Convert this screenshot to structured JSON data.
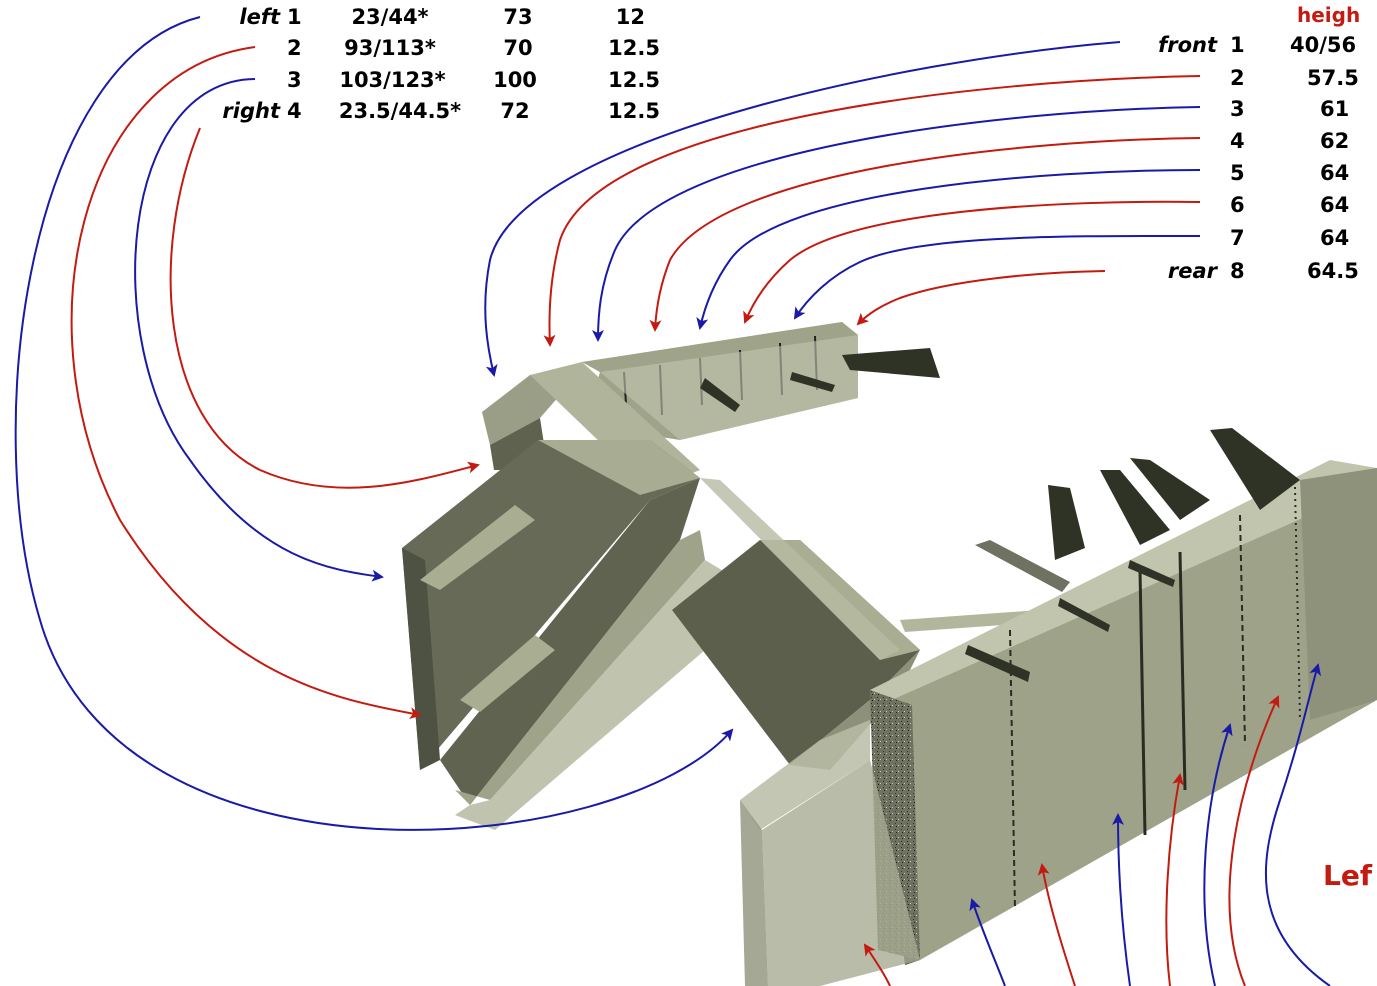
{
  "left_table": {
    "rows": [
      {
        "side": "left",
        "n": "1",
        "span": "23/44*",
        "width": "73",
        "thick": "12"
      },
      {
        "side": "",
        "n": "2",
        "span": "93/113*",
        "width": "70",
        "thick": "12.5"
      },
      {
        "side": "",
        "n": "3",
        "span": "103/123*",
        "width": "100",
        "thick": "12.5"
      },
      {
        "side": "right",
        "n": "4",
        "span": "23.5/44.5*",
        "width": "72",
        "thick": "12.5"
      }
    ]
  },
  "right_table": {
    "header": "heigh",
    "rows": [
      {
        "side": "front",
        "n": "1",
        "height": "40/56"
      },
      {
        "side": "",
        "n": "2",
        "height": "57.5"
      },
      {
        "side": "",
        "n": "3",
        "height": "61"
      },
      {
        "side": "",
        "n": "4",
        "height": "62"
      },
      {
        "side": "",
        "n": "5",
        "height": "64"
      },
      {
        "side": "",
        "n": "6",
        "height": "64"
      },
      {
        "side": "",
        "n": "7",
        "height": "64"
      },
      {
        "side": "rear",
        "n": "8",
        "height": "64.5"
      }
    ]
  },
  "caption": "Lef",
  "colors": {
    "red_arrow": "#c41a10",
    "blue_arrow": "#1a1aa8",
    "model_light": "#a9ad92",
    "model_mid": "#8d917a",
    "model_dark": "#5b5f4c",
    "slab_black": "#2f3325"
  }
}
